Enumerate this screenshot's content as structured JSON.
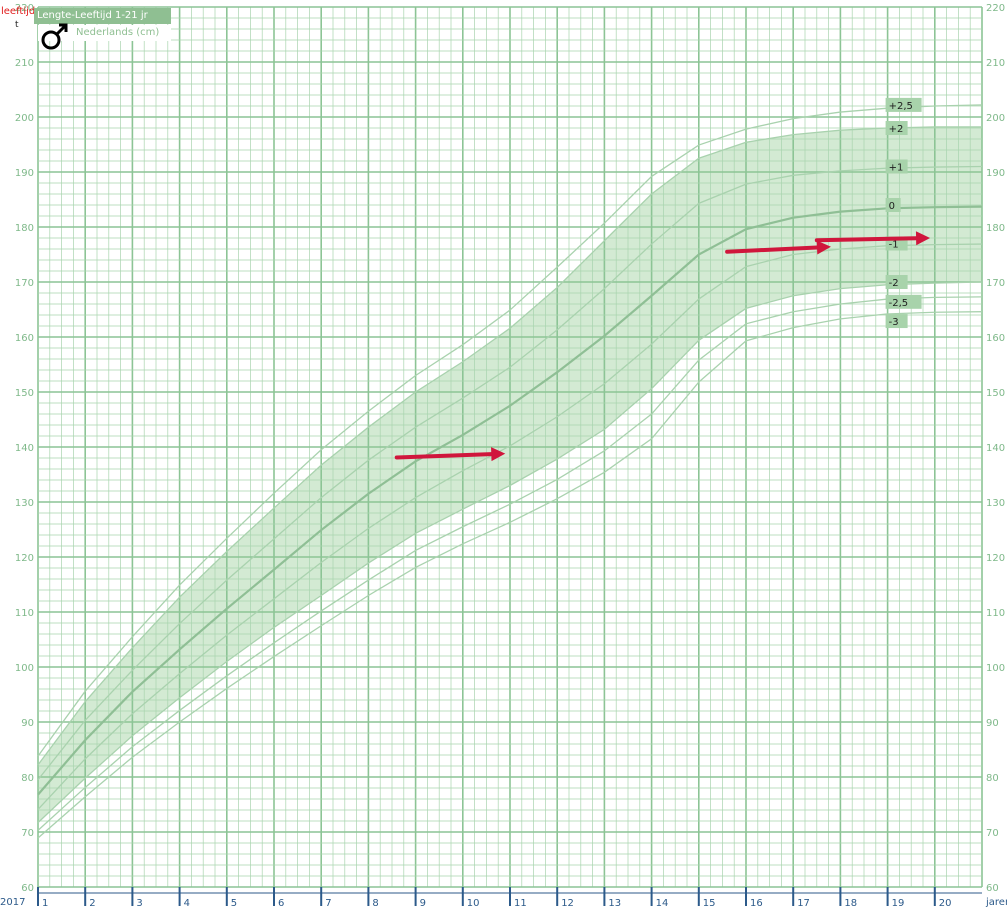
{
  "header": {
    "age_label": "leeftijd",
    "tiny_mark": "t",
    "title": "Lengte-Leeftijd 1-21 jr",
    "subtitle": "Nederlands  (cm)",
    "sex_symbol": "male-symbol"
  },
  "footer": {
    "year_start": "2017",
    "x_unit": "jaren"
  },
  "colors": {
    "grid": "#a8d4ae",
    "grid_major": "#8cc495",
    "band_fill": "#d3ead3",
    "curve": "#a9d2ae",
    "median": "#8fbf95",
    "axis_label": "#7fb98a",
    "x_axis_text": "#2c5a8a",
    "sd_tag_bg": "#a8d3ab",
    "arrow": "#d0163c"
  },
  "chart_data": {
    "type": "line",
    "title": "Lengte-Leeftijd 1-21 jr",
    "subtitle": "Nederlands  (cm)",
    "xlabel": "jaren",
    "ylabel": "",
    "xlim": [
      1,
      21
    ],
    "ylim": [
      60,
      220
    ],
    "x_ticks": [
      1,
      2,
      3,
      4,
      5,
      6,
      7,
      8,
      9,
      10,
      11,
      12,
      13,
      14,
      15,
      16,
      17,
      18,
      19,
      20
    ],
    "y_ticks": [
      60,
      70,
      80,
      90,
      100,
      110,
      120,
      130,
      140,
      150,
      160,
      170,
      180,
      190,
      200,
      210,
      220
    ],
    "grid": true,
    "shaded_band": {
      "from_series": "-2",
      "to_series": "+2"
    },
    "series": [
      {
        "name": "+2,5",
        "x": [
          1,
          2,
          3,
          4,
          5,
          6,
          7,
          8,
          9,
          10,
          11,
          12,
          13,
          14,
          15,
          16,
          17,
          18,
          19,
          20,
          21
        ],
        "y": [
          83.8,
          95.6,
          105.5,
          114.9,
          123.4,
          131.6,
          139.5,
          146.5,
          153.0,
          158.6,
          164.9,
          172.7,
          180.7,
          189.2,
          194.9,
          197.8,
          199.7,
          200.9,
          201.6,
          202.0,
          202.2
        ]
      },
      {
        "name": "+2",
        "x": [
          1,
          2,
          3,
          4,
          5,
          6,
          7,
          8,
          9,
          10,
          11,
          12,
          13,
          14,
          15,
          16,
          17,
          18,
          19,
          20,
          21
        ],
        "y": [
          82.2,
          93.7,
          103.5,
          112.7,
          121.0,
          128.9,
          136.7,
          143.6,
          150.0,
          155.5,
          161.6,
          169.0,
          177.5,
          186.0,
          192.5,
          195.4,
          196.8,
          197.6,
          198.0,
          198.2,
          198.2
        ]
      },
      {
        "name": "+1",
        "x": [
          1,
          2,
          3,
          4,
          5,
          6,
          7,
          8,
          9,
          10,
          11,
          12,
          13,
          14,
          15,
          16,
          17,
          18,
          19,
          20,
          21
        ],
        "y": [
          79.5,
          90.3,
          99.4,
          107.9,
          115.8,
          123.3,
          130.8,
          137.6,
          143.6,
          148.9,
          154.5,
          161.3,
          168.8,
          176.9,
          184.3,
          187.8,
          189.4,
          190.2,
          190.7,
          190.9,
          191.0
        ]
      },
      {
        "name": "0",
        "x": [
          1,
          2,
          3,
          4,
          5,
          6,
          7,
          8,
          9,
          10,
          11,
          12,
          13,
          14,
          15,
          16,
          17,
          18,
          19,
          20,
          21
        ],
        "y": [
          76.8,
          86.7,
          95.5,
          103.2,
          110.6,
          117.7,
          124.9,
          131.5,
          137.4,
          142.2,
          147.5,
          153.6,
          160.2,
          167.5,
          175.0,
          179.6,
          181.7,
          182.8,
          183.4,
          183.6,
          183.7
        ]
      },
      {
        "name": "-1",
        "x": [
          1,
          2,
          3,
          4,
          5,
          6,
          7,
          8,
          9,
          10,
          11,
          12,
          13,
          14,
          15,
          16,
          17,
          18,
          19,
          20,
          21
        ],
        "y": [
          74.1,
          83.3,
          91.5,
          98.8,
          105.8,
          112.4,
          119.0,
          125.2,
          130.8,
          135.7,
          140.2,
          145.5,
          151.5,
          158.7,
          166.9,
          172.8,
          175.0,
          176.0,
          176.6,
          176.8,
          176.9
        ]
      },
      {
        "name": "-2",
        "x": [
          1,
          2,
          3,
          4,
          5,
          6,
          7,
          8,
          9,
          10,
          11,
          12,
          13,
          14,
          15,
          16,
          17,
          18,
          19,
          20,
          21
        ],
        "y": [
          71.7,
          79.8,
          87.5,
          94.4,
          101.0,
          107.2,
          113.0,
          118.9,
          124.3,
          128.7,
          133.0,
          137.8,
          143.2,
          150.6,
          159.4,
          165.2,
          167.5,
          168.8,
          169.5,
          169.8,
          170.0
        ]
      },
      {
        "name": "-2,5",
        "x": [
          1,
          2,
          3,
          4,
          5,
          6,
          7,
          8,
          9,
          10,
          11,
          12,
          13,
          14,
          15,
          16,
          17,
          18,
          19,
          20,
          21
        ],
        "y": [
          70.3,
          78.1,
          85.5,
          92.1,
          98.4,
          104.4,
          110.2,
          115.8,
          121.2,
          125.5,
          129.6,
          134.1,
          139.3,
          146.0,
          155.8,
          162.4,
          164.6,
          166.0,
          166.9,
          167.2,
          167.3
        ]
      },
      {
        "name": "-3",
        "x": [
          1,
          2,
          3,
          4,
          5,
          6,
          7,
          8,
          9,
          10,
          11,
          12,
          13,
          14,
          15,
          16,
          17,
          18,
          19,
          20,
          21
        ],
        "y": [
          68.9,
          76.4,
          83.6,
          90.0,
          96.1,
          101.9,
          107.5,
          113.0,
          118.1,
          122.4,
          126.3,
          130.6,
          135.4,
          141.5,
          151.8,
          159.3,
          161.7,
          163.3,
          164.2,
          164.5,
          164.6
        ]
      }
    ],
    "sd_tags": [
      {
        "label": "+2,5",
        "y": 202.2
      },
      {
        "label": "+2",
        "y": 198.0
      },
      {
        "label": "+1",
        "y": 191.0
      },
      {
        "label": "0",
        "y": 184.0
      },
      {
        "label": "-1",
        "y": 177.0
      },
      {
        "label": "-2",
        "y": 170.0
      },
      {
        "label": "-2,5",
        "y": 166.4
      },
      {
        "label": "-3",
        "y": 162.9
      }
    ],
    "annotation_arrows": [
      {
        "from": [
          8.6,
          138.1
        ],
        "to": [
          10.9,
          138.8
        ]
      },
      {
        "from": [
          15.6,
          175.5
        ],
        "to": [
          17.8,
          176.4
        ]
      },
      {
        "from": [
          17.5,
          177.6
        ],
        "to": [
          19.9,
          178.0
        ]
      }
    ]
  }
}
